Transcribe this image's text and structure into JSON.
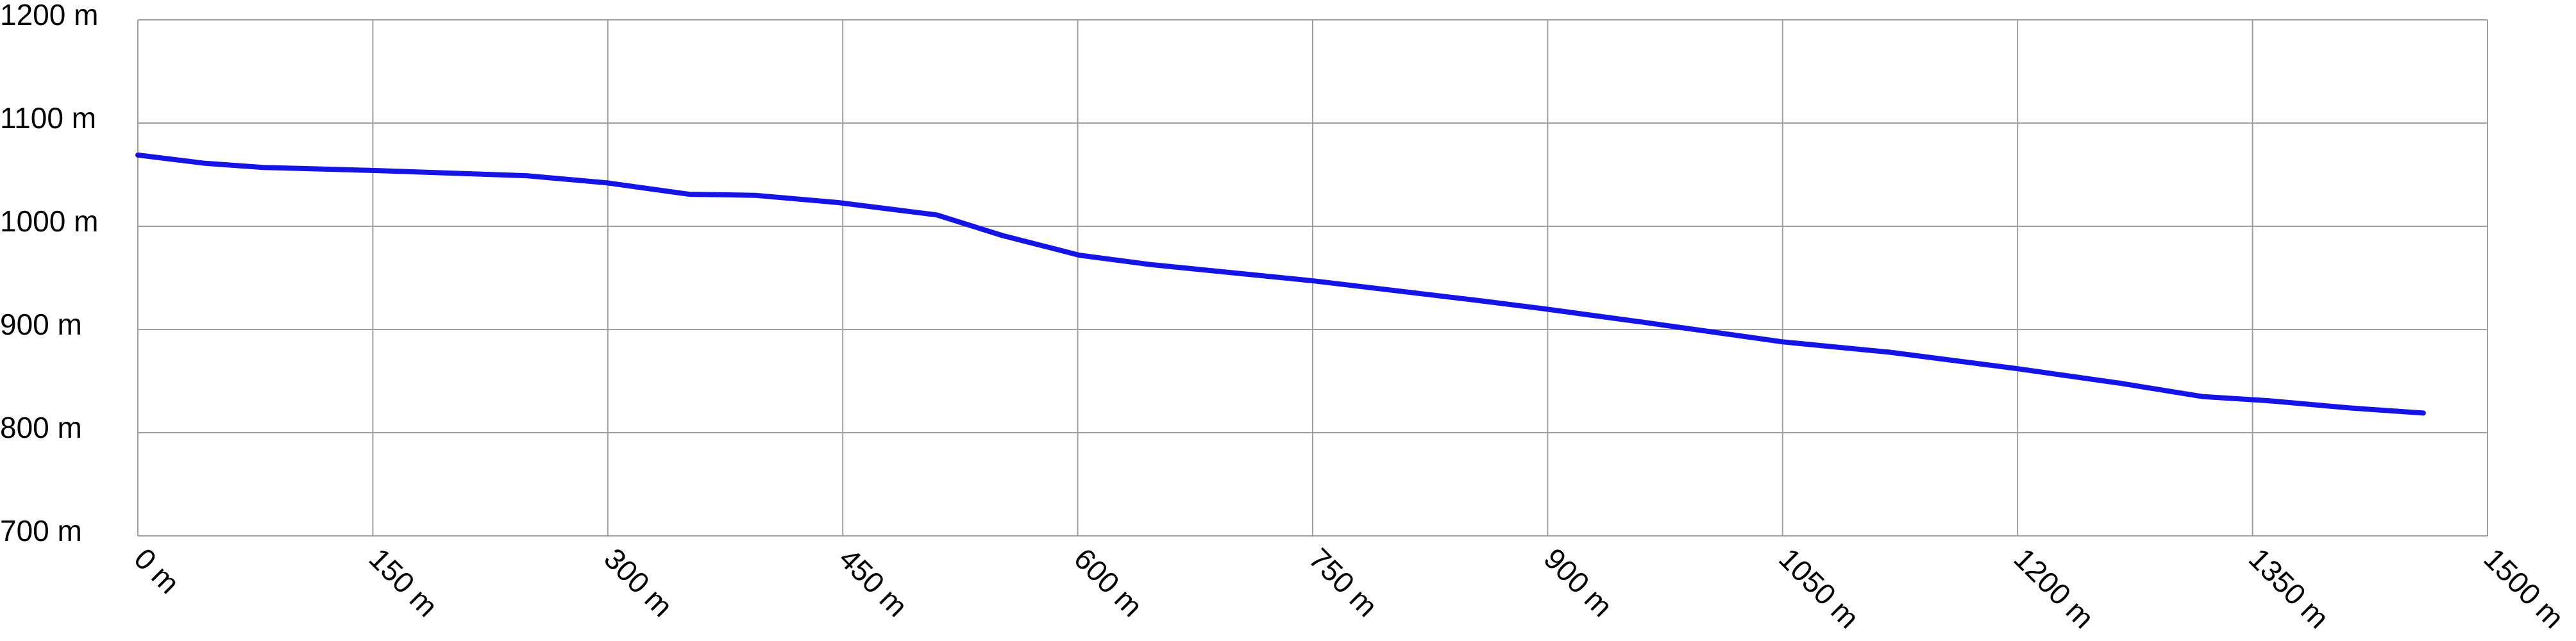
{
  "chart_data": {
    "type": "line",
    "x": [
      0,
      43,
      80,
      153,
      248,
      300,
      352,
      394,
      447,
      510,
      552,
      601,
      646,
      751,
      856,
      898,
      961,
      1050,
      1118,
      1200,
      1265,
      1318,
      1360,
      1412,
      1459
    ],
    "series": [
      {
        "color": "#1414e6",
        "values": [
          1069,
          1061,
          1057,
          1054,
          1049,
          1042,
          1031,
          1030,
          1023,
          1011,
          991,
          972,
          963,
          947,
          928,
          920,
          907,
          888,
          878,
          862,
          848,
          835,
          831,
          824,
          819
        ]
      }
    ],
    "xlim": [
      0,
      1500
    ],
    "ylim": [
      700,
      1200
    ],
    "xticks": [
      {
        "value": 0,
        "label": "0 m"
      },
      {
        "value": 150,
        "label": "150 m"
      },
      {
        "value": 300,
        "label": "300 m"
      },
      {
        "value": 450,
        "label": "450 m"
      },
      {
        "value": 600,
        "label": "600 m"
      },
      {
        "value": 750,
        "label": "750 m"
      },
      {
        "value": 900,
        "label": "900 m"
      },
      {
        "value": 1050,
        "label": "1050 m"
      },
      {
        "value": 1200,
        "label": "1200 m"
      },
      {
        "value": 1350,
        "label": "1350 m"
      },
      {
        "value": 1500,
        "label": "1500 m"
      }
    ],
    "yticks": [
      {
        "value": 700,
        "label": "700 m"
      },
      {
        "value": 800,
        "label": "800 m"
      },
      {
        "value": 900,
        "label": "900 m"
      },
      {
        "value": 1000,
        "label": "1000 m"
      },
      {
        "value": 1100,
        "label": "1100 m"
      },
      {
        "value": 1200,
        "label": "1200 m"
      }
    ],
    "grid": true
  }
}
